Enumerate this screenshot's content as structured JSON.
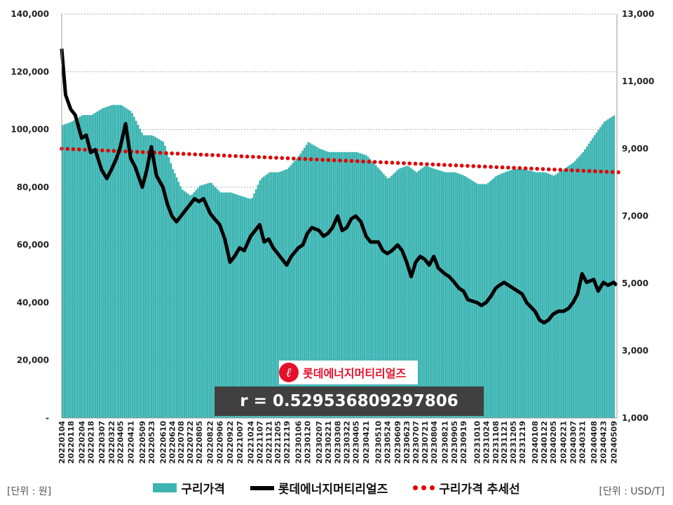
{
  "chart_data": {
    "type": "bar",
    "series": [
      {
        "name": "구리가격",
        "type": "bar",
        "axis": "right",
        "points": [
          [
            "20220104",
            9700
          ],
          [
            "20220118",
            9800
          ],
          [
            "20220204",
            10000
          ],
          [
            "20220218",
            10000
          ],
          [
            "20220307",
            10200
          ],
          [
            "20220322",
            10300
          ],
          [
            "20220405",
            10300
          ],
          [
            "20220421",
            10100
          ],
          [
            "20220509",
            9400
          ],
          [
            "20220523",
            9400
          ],
          [
            "20220610",
            9200
          ],
          [
            "20220624",
            8400
          ],
          [
            "20220708",
            7800
          ],
          [
            "20220722",
            7600
          ],
          [
            "20220805",
            7900
          ],
          [
            "20220822",
            8000
          ],
          [
            "20220906",
            7700
          ],
          [
            "20220922",
            7700
          ],
          [
            "20221007",
            7600
          ],
          [
            "20221024",
            7500
          ],
          [
            "20221107",
            8100
          ],
          [
            "20221121",
            8300
          ],
          [
            "20221205",
            8300
          ],
          [
            "20221219",
            8400
          ],
          [
            "20230106",
            8800
          ],
          [
            "20230120",
            9200
          ],
          [
            "20230207",
            9000
          ],
          [
            "20230221",
            8900
          ],
          [
            "20230308",
            8900
          ],
          [
            "20230322",
            8900
          ],
          [
            "20230405",
            8900
          ],
          [
            "20230421",
            8800
          ],
          [
            "20230510",
            8400
          ],
          [
            "20230524",
            8100
          ],
          [
            "20230609",
            8400
          ],
          [
            "20230623",
            8500
          ],
          [
            "20230707",
            8300
          ],
          [
            "20230721",
            8500
          ],
          [
            "20230804",
            8400
          ],
          [
            "20230821",
            8300
          ],
          [
            "20230905",
            8300
          ],
          [
            "20230919",
            8200
          ],
          [
            "20231010",
            7950
          ],
          [
            "20231024",
            7950
          ],
          [
            "20231108",
            8200
          ],
          [
            "20231121",
            8300
          ],
          [
            "20231205",
            8400
          ],
          [
            "20231219",
            8400
          ],
          [
            "20240108",
            8300
          ],
          [
            "20240122",
            8300
          ],
          [
            "20240205",
            8200
          ],
          [
            "20240221",
            8400
          ],
          [
            "20240307",
            8600
          ],
          [
            "20240321",
            8900
          ],
          [
            "20240408",
            9400
          ],
          [
            "20240423",
            9800
          ],
          [
            "20240509",
            10000
          ]
        ]
      },
      {
        "name": "롯데에너지머티리얼즈",
        "type": "line",
        "axis": "left",
        "points": [
          [
            "20220104",
            128000
          ],
          [
            "20220110",
            112000
          ],
          [
            "20220118",
            107000
          ],
          [
            "20220125",
            105000
          ],
          [
            "20220204",
            97000
          ],
          [
            "20220211",
            98000
          ],
          [
            "20220218",
            92000
          ],
          [
            "20220225",
            93000
          ],
          [
            "20220307",
            86000
          ],
          [
            "20220315",
            83000
          ],
          [
            "20220322",
            86000
          ],
          [
            "20220330",
            90000
          ],
          [
            "20220405",
            94000
          ],
          [
            "20220413",
            102000
          ],
          [
            "20220421",
            90000
          ],
          [
            "20220428",
            87000
          ],
          [
            "20220509",
            80000
          ],
          [
            "20220516",
            86000
          ],
          [
            "20220523",
            94000
          ],
          [
            "20220531",
            84000
          ],
          [
            "20220610",
            80000
          ],
          [
            "20220617",
            74000
          ],
          [
            "20220624",
            70000
          ],
          [
            "20220701",
            68000
          ],
          [
            "20220708",
            70000
          ],
          [
            "20220715",
            72000
          ],
          [
            "20220722",
            74000
          ],
          [
            "20220729",
            76000
          ],
          [
            "20220805",
            75000
          ],
          [
            "20220812",
            76000
          ],
          [
            "20220822",
            71000
          ],
          [
            "20220829",
            69000
          ],
          [
            "20220906",
            67000
          ],
          [
            "20220914",
            62000
          ],
          [
            "20220922",
            54000
          ],
          [
            "20220929",
            56000
          ],
          [
            "20221007",
            59000
          ],
          [
            "20221014",
            58000
          ],
          [
            "20221024",
            63000
          ],
          [
            "20221031",
            65000
          ],
          [
            "20221107",
            67000
          ],
          [
            "20221114",
            61000
          ],
          [
            "20221121",
            62000
          ],
          [
            "20221128",
            59000
          ],
          [
            "20221205",
            57000
          ],
          [
            "20221212",
            55000
          ],
          [
            "20221219",
            53000
          ],
          [
            "20221226",
            56000
          ],
          [
            "20230106",
            59000
          ],
          [
            "20230113",
            60000
          ],
          [
            "20230120",
            64000
          ],
          [
            "20230127",
            66000
          ],
          [
            "20230207",
            65000
          ],
          [
            "20230214",
            63000
          ],
          [
            "20230221",
            64000
          ],
          [
            "20230228",
            66000
          ],
          [
            "20230308",
            70000
          ],
          [
            "20230315",
            65000
          ],
          [
            "20230322",
            66000
          ],
          [
            "20230329",
            69000
          ],
          [
            "20230405",
            70000
          ],
          [
            "20230413",
            68000
          ],
          [
            "20230421",
            63000
          ],
          [
            "20230428",
            61000
          ],
          [
            "20230510",
            61000
          ],
          [
            "20230517",
            58000
          ],
          [
            "20230524",
            57000
          ],
          [
            "20230531",
            58000
          ],
          [
            "20230609",
            60000
          ],
          [
            "20230616",
            58000
          ],
          [
            "20230623",
            54000
          ],
          [
            "20230630",
            49000
          ],
          [
            "20230707",
            54000
          ],
          [
            "20230714",
            56000
          ],
          [
            "20230721",
            55000
          ],
          [
            "20230728",
            53000
          ],
          [
            "20230804",
            56000
          ],
          [
            "20230811",
            52000
          ],
          [
            "20230821",
            50000
          ],
          [
            "20230828",
            49000
          ],
          [
            "20230905",
            47000
          ],
          [
            "20230912",
            45000
          ],
          [
            "20230919",
            44000
          ],
          [
            "20230926",
            41000
          ],
          [
            "20231010",
            40000
          ],
          [
            "20231017",
            39000
          ],
          [
            "20231024",
            40000
          ],
          [
            "20231031",
            42000
          ],
          [
            "20231108",
            45000
          ],
          [
            "20231114",
            46000
          ],
          [
            "20231121",
            47000
          ],
          [
            "20231128",
            46000
          ],
          [
            "20231205",
            45000
          ],
          [
            "20231212",
            44000
          ],
          [
            "20231219",
            43000
          ],
          [
            "20231226",
            40000
          ],
          [
            "20240108",
            37000
          ],
          [
            "20240115",
            34000
          ],
          [
            "20240122",
            33000
          ],
          [
            "20240129",
            34000
          ],
          [
            "20240205",
            36000
          ],
          [
            "20240213",
            37000
          ],
          [
            "20240221",
            37000
          ],
          [
            "20240229",
            38000
          ],
          [
            "20240307",
            40000
          ],
          [
            "20240314",
            43000
          ],
          [
            "20240321",
            50000
          ],
          [
            "20240328",
            47000
          ],
          [
            "20240408",
            48000
          ],
          [
            "20240415",
            44000
          ],
          [
            "20240423",
            47000
          ],
          [
            "20240430",
            46000
          ],
          [
            "20240509",
            47000
          ],
          [
            "20240514",
            46000
          ]
        ]
      },
      {
        "name": "구리가격 추세선",
        "type": "trendline",
        "axis": "right",
        "points": [
          [
            "20220104",
            9000
          ],
          [
            "20240514",
            8300
          ]
        ]
      }
    ],
    "x_tick_labels": [
      "20220104",
      "20220118",
      "20220204",
      "20220218",
      "20220307",
      "20220322",
      "20220405",
      "20220421",
      "20220509",
      "20220523",
      "20220610",
      "20220624",
      "20220708",
      "20220722",
      "20220805",
      "20220822",
      "20220906",
      "20220922",
      "20221007",
      "20221024",
      "20221107",
      "20221121",
      "20221205",
      "20221219",
      "20230106",
      "20230120",
      "20230207",
      "20230221",
      "20230308",
      "20230322",
      "20230405",
      "20230421",
      "20230510",
      "20230524",
      "20230609",
      "20230623",
      "20230707",
      "20230721",
      "20230804",
      "20230821",
      "20230905",
      "20230919",
      "20231010",
      "20231024",
      "20231108",
      "20231121",
      "20231205",
      "20231219",
      "20240108",
      "20240122",
      "20240205",
      "20240221",
      "20240307",
      "20240321",
      "20240408",
      "20240423",
      "20240509"
    ],
    "left_axis": {
      "ticks": [
        0,
        20000,
        40000,
        60000,
        80000,
        100000,
        120000,
        140000
      ],
      "range": [
        0,
        140000
      ]
    },
    "right_axis": {
      "ticks": [
        1000,
        3000,
        5000,
        7000,
        9000,
        11000,
        13000
      ],
      "range": [
        1000,
        13000
      ]
    },
    "grid": "horizontal dotted",
    "legend_position": "bottom",
    "unit_left": "[단위 : 원]",
    "unit_right": "[단위 : USD/T]",
    "logo_text": "롯데에너지머티리얼즈",
    "annotation": "r = 0.529536809297806"
  },
  "colors": {
    "bar": "#3bb4b2",
    "line": "#000000",
    "trend": "#e00000",
    "grid": "#b0b0b0"
  }
}
